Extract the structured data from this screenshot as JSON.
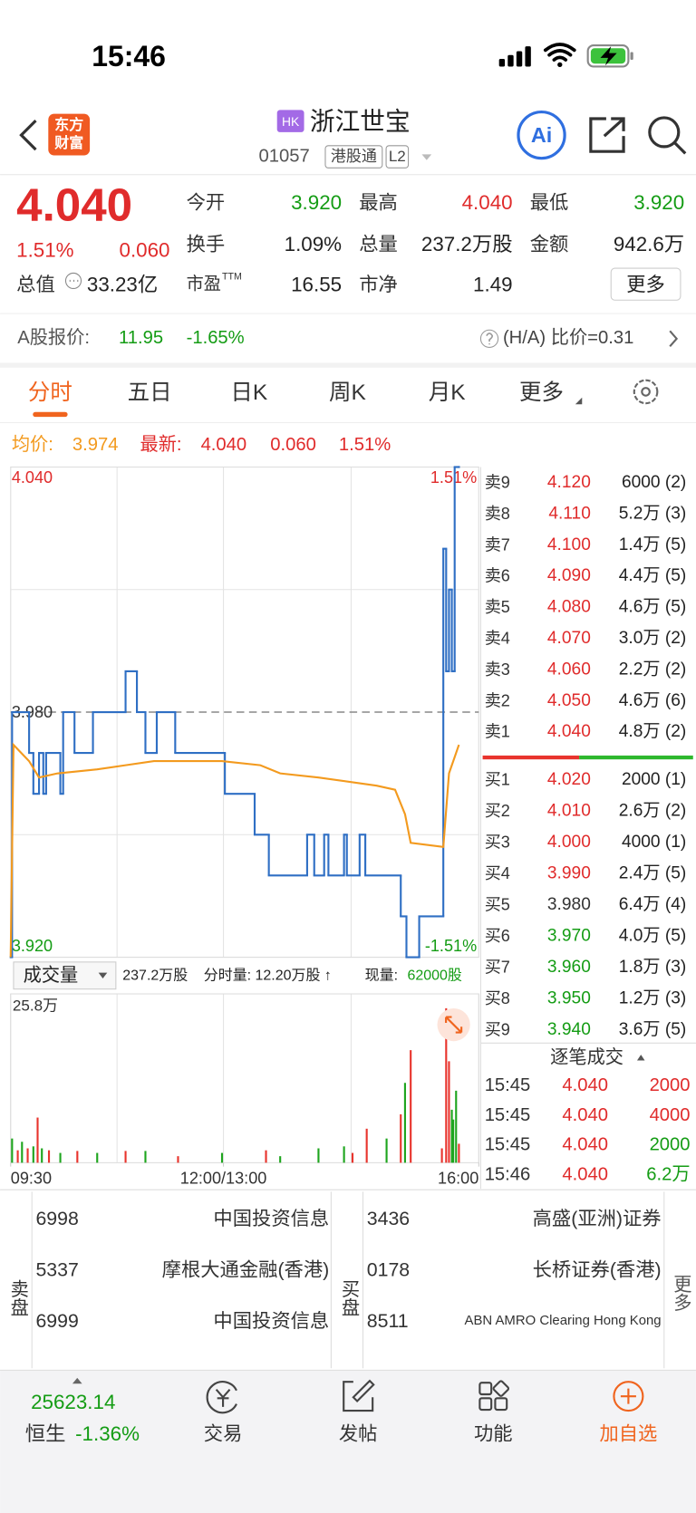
{
  "status_bar": {
    "time": "15:46"
  },
  "header": {
    "logo": [
      "东方",
      "财富"
    ],
    "market": "HK",
    "title": "浙江世宝",
    "code": "01057",
    "tags": [
      "港股通",
      "L2"
    ],
    "ai": "Ai"
  },
  "quote": {
    "price": "4.040",
    "change_pct": "1.51%",
    "change": "0.060",
    "market_cap_label": "总值",
    "market_cap": "33.23亿",
    "stats": [
      {
        "label": "今开",
        "value": "3.920",
        "color": "#149c14"
      },
      {
        "label": "最高",
        "value": "4.040",
        "color": "#e02b2b"
      },
      {
        "label": "最低",
        "value": "3.920",
        "color": "#149c14"
      },
      {
        "label": "换手",
        "value": "1.09%",
        "color": "#222222"
      },
      {
        "label": "总量",
        "value": "237.2万股",
        "color": "#222222"
      },
      {
        "label": "金额",
        "value": "942.6万",
        "color": "#222222"
      },
      {
        "label": "市盈",
        "label_sup": "TTM",
        "value": "16.55",
        "color": "#222222"
      },
      {
        "label": "市净",
        "value": "1.49",
        "color": "#222222"
      }
    ],
    "more": "更多"
  },
  "a_share": {
    "label": "A股报价:",
    "price": "11.95",
    "change": "-1.65%",
    "ratio": "(H/A) 比价=0.31"
  },
  "tabs": {
    "items": [
      "分时",
      "五日",
      "日K",
      "周K",
      "月K",
      "更多"
    ],
    "active": 0
  },
  "summary": {
    "avg_label": "均价:",
    "avg": "3.974",
    "latest_label": "最新:",
    "latest": "4.040",
    "change": "0.060",
    "change_pct": "1.51%"
  },
  "chart_data": [
    {
      "type": "line",
      "xlim": [
        0,
        330
      ],
      "ylim": [
        3.92,
        4.04
      ],
      "yticks": [
        {
          "value": 4.04,
          "label": "4.040"
        },
        {
          "value": 3.98,
          "label": "3.980"
        },
        {
          "value": 3.92,
          "label": "3.920"
        }
      ],
      "y2lim": [
        -1.51,
        1.51
      ],
      "y2ticks": [
        {
          "value": 1.51,
          "label": "1.51%"
        },
        {
          "value": -1.51,
          "label": "-1.51%"
        }
      ],
      "series": [
        {
          "color": "#2f6fc4",
          "step": true,
          "x": [
            0,
            1,
            13,
            16,
            20,
            23,
            25,
            35,
            37,
            45,
            58,
            81,
            89,
            95,
            103,
            116,
            151,
            172,
            182,
            209,
            214,
            221,
            224,
            235,
            237,
            246,
            250,
            275,
            279,
            288,
            305,
            307,
            309,
            311,
            313,
            316
          ],
          "values": [
            3.92,
            3.98,
            3.97,
            3.96,
            3.97,
            3.96,
            3.97,
            3.96,
            3.98,
            3.97,
            3.98,
            3.99,
            3.98,
            3.97,
            3.98,
            3.97,
            3.96,
            3.95,
            3.94,
            3.95,
            3.94,
            3.95,
            3.94,
            3.95,
            3.94,
            3.95,
            3.94,
            3.93,
            3.92,
            3.93,
            4.02,
            3.99,
            4.01,
            3.99,
            4.04,
            4.04
          ]
        },
        {
          "color": "#f39a1e",
          "x": [
            0,
            2,
            13,
            20,
            33,
            61,
            81,
            101,
            149,
            176,
            190,
            217,
            258,
            271,
            278,
            282,
            305,
            309,
            313,
            316
          ],
          "values": [
            3.92,
            3.972,
            3.968,
            3.964,
            3.965,
            3.966,
            3.967,
            3.968,
            3.968,
            3.967,
            3.965,
            3.964,
            3.962,
            3.961,
            3.955,
            3.948,
            3.947,
            3.965,
            3.969,
            3.972
          ]
        }
      ]
    },
    {
      "type": "bar",
      "title": "成交量",
      "total": "237.2万股",
      "interval_label": "分时量: 12.20万股 ↑",
      "current_label": "现量:",
      "current": "62000股",
      "xlim": [
        0,
        330
      ],
      "ylim": [
        0,
        25.8
      ],
      "yticks": [
        {
          "value": 25.8,
          "label": "25.8万"
        }
      ],
      "xticks": [
        {
          "value": 0,
          "label": "09:30"
        },
        {
          "value": 150,
          "label": "12:00/13:00"
        },
        {
          "value": 330,
          "label": "16:00"
        }
      ],
      "x": [
        1,
        5,
        8,
        12,
        16,
        19,
        22,
        27,
        35,
        47,
        61,
        81,
        95,
        118,
        149,
        180,
        190,
        217,
        235,
        241,
        251,
        265,
        275,
        278,
        282,
        304,
        307,
        309,
        311,
        312,
        314,
        316
      ],
      "values": [
        3.7,
        1.9,
        3.2,
        2.2,
        2.5,
        6.9,
        2.2,
        1.9,
        1.5,
        1.8,
        1.5,
        1.8,
        1.8,
        1.0,
        1.5,
        1.9,
        1.0,
        2.2,
        2.5,
        1.5,
        5.2,
        3.7,
        7.4,
        12.2,
        17.2,
        2.2,
        23.6,
        15.5,
        8.1,
        6.6,
        11.0,
        2.9
      ],
      "colors": [
        "#1ea51e",
        "#e8342d",
        "#1ea51e",
        "#e8342d",
        "#1ea51e",
        "#e8342d",
        "#1ea51e",
        "#e8342d",
        "#1ea51e",
        "#e8342d",
        "#1ea51e",
        "#e8342d",
        "#1ea51e",
        "#e8342d",
        "#1ea51e",
        "#e8342d",
        "#1ea51e",
        "#1ea51e",
        "#1ea51e",
        "#e8342d",
        "#e8342d",
        "#1ea51e",
        "#e8342d",
        "#1ea51e",
        "#e8342d",
        "#e8342d",
        "#e8342d",
        "#e8342d",
        "#1ea51e",
        "#1ea51e",
        "#1ea51e",
        "#e8342d"
      ]
    }
  ],
  "order_book": {
    "asks": [
      {
        "label": "卖9",
        "price": "4.120",
        "volume": "6000 (2)"
      },
      {
        "label": "卖8",
        "price": "4.110",
        "volume": "5.2万 (3)"
      },
      {
        "label": "卖7",
        "price": "4.100",
        "volume": "1.4万 (5)"
      },
      {
        "label": "卖6",
        "price": "4.090",
        "volume": "4.4万 (5)"
      },
      {
        "label": "卖5",
        "price": "4.080",
        "volume": "4.6万 (5)"
      },
      {
        "label": "卖4",
        "price": "4.070",
        "volume": "3.0万 (2)"
      },
      {
        "label": "卖3",
        "price": "4.060",
        "volume": "2.2万 (2)"
      },
      {
        "label": "卖2",
        "price": "4.050",
        "volume": "4.6万 (6)"
      },
      {
        "label": "卖1",
        "price": "4.040",
        "volume": "4.8万 (2)"
      }
    ],
    "bids": [
      {
        "label": "买1",
        "price": "4.020",
        "volume": "2000 (1)"
      },
      {
        "label": "买2",
        "price": "4.010",
        "volume": "2.6万 (2)"
      },
      {
        "label": "买3",
        "price": "4.000",
        "volume": "4000 (1)"
      },
      {
        "label": "买4",
        "price": "3.990",
        "volume": "2.4万 (5)"
      },
      {
        "label": "买5",
        "price": "3.980",
        "volume": "6.4万 (4)"
      },
      {
        "label": "买6",
        "price": "3.970",
        "volume": "4.0万 (5)"
      },
      {
        "label": "买7",
        "price": "3.960",
        "volume": "1.8万 (3)"
      },
      {
        "label": "买8",
        "price": "3.950",
        "volume": "1.2万 (3)"
      },
      {
        "label": "买9",
        "price": "3.940",
        "volume": "3.6万 (5)"
      }
    ]
  },
  "trades": {
    "title": "逐笔成交",
    "rows": [
      {
        "time": "15:45",
        "price": "4.040",
        "volume": "2000",
        "color": "#e02b2b"
      },
      {
        "time": "15:45",
        "price": "4.040",
        "volume": "4000",
        "color": "#e02b2b"
      },
      {
        "time": "15:45",
        "price": "4.040",
        "volume": "2000",
        "color": "#149c14"
      },
      {
        "time": "15:46",
        "price": "4.040",
        "volume": "6.2万",
        "color": "#149c14"
      }
    ]
  },
  "brokers": {
    "sell_label": "卖盘",
    "sell": [
      {
        "id": "6998",
        "name": "中国投资信息"
      },
      {
        "id": "5337",
        "name": "摩根大通金融(香港)"
      },
      {
        "id": "6999",
        "name": "中国投资信息"
      }
    ],
    "buy_label": "买盘",
    "buy": [
      {
        "id": "3436",
        "name": "高盛(亚洲)证券"
      },
      {
        "id": "0178",
        "name": "长桥证券(香港)"
      },
      {
        "id": "8511",
        "name": "ABN AMRO Clearing Hong Kong"
      }
    ],
    "more": "更多"
  },
  "bottom_nav": {
    "index_value": "25623.14",
    "index_name": "恒生",
    "index_change": "-1.36%",
    "items": [
      "交易",
      "发帖",
      "功能",
      "加自选"
    ]
  }
}
